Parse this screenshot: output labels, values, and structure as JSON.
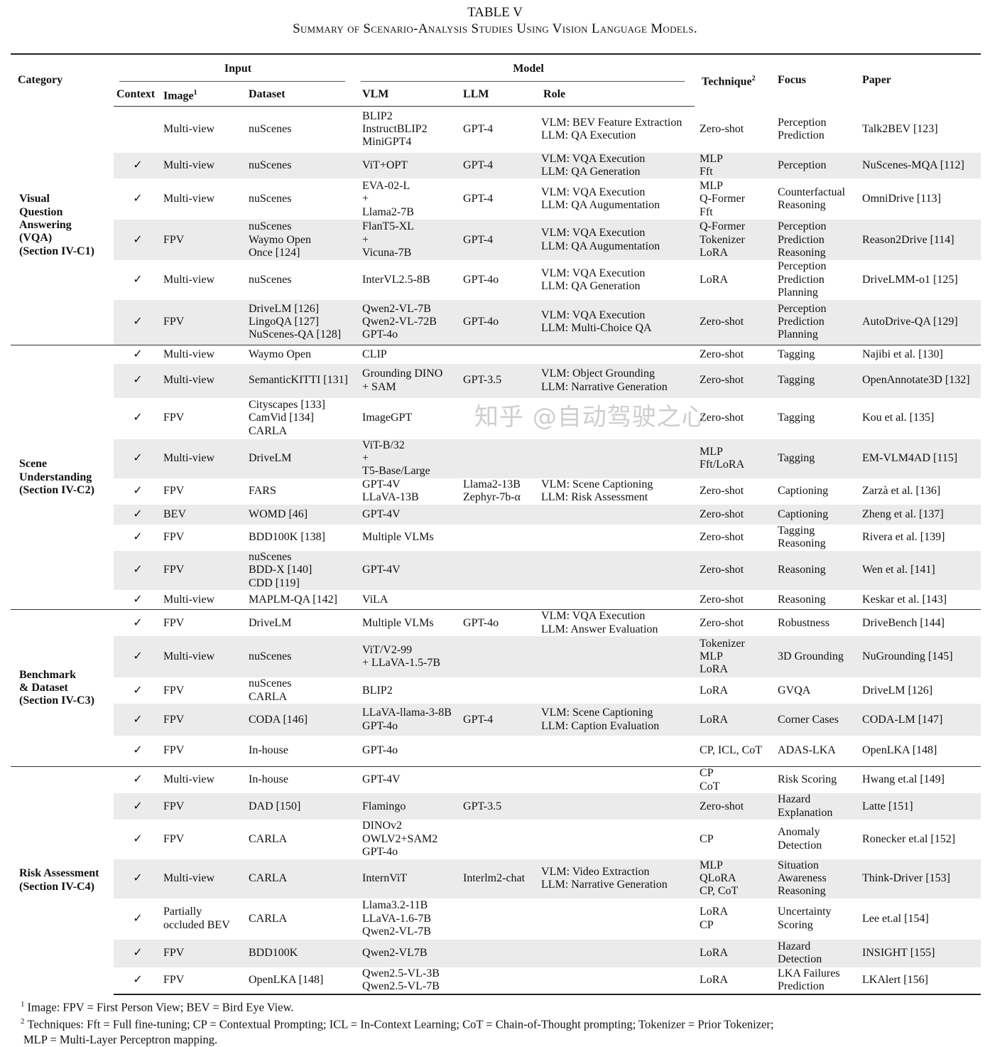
{
  "title": "TABLE V",
  "subtitle": "Summary of Scenario-Analysis Studies Using Vision Language Models.",
  "headers": {
    "category": "Category",
    "input": "Input",
    "model": "Model",
    "technique": "Technique",
    "technique_sup": "2",
    "focus": "Focus",
    "paper": "Paper",
    "context": "Context",
    "image": "Image",
    "image_sup": "1",
    "dataset": "Dataset",
    "vlm": "VLM",
    "llm": "LLM",
    "role": "Role"
  },
  "check_mark": "✓",
  "row_shading_color": "#ebebeb",
  "groups": [
    {
      "category": "Visual\nQuestion\nAnswering\n(VQA)\n(Section IV-C1)",
      "rows": [
        {
          "context": false,
          "image": "Multi-view",
          "dataset": "nuScenes",
          "vlm": "BLIP2\nInstructBLIP2\nMiniGPT4",
          "llm": "GPT-4",
          "role": "VLM: BEV Feature Extraction\nLLM: QA Execution",
          "technique": "Zero-shot",
          "focus": "Perception\nPrediction",
          "paper": "Talk2BEV [123]"
        },
        {
          "context": true,
          "image": "Multi-view",
          "dataset": "nuScenes",
          "vlm": "ViT+OPT",
          "llm": "GPT-4",
          "role": "VLM: VQA Execution\nLLM: QA Generation",
          "technique": "MLP\nFft",
          "focus": "Perception",
          "paper": "NuScenes-MQA [112]"
        },
        {
          "context": true,
          "image": "Multi-view",
          "dataset": "nuScenes",
          "vlm": "EVA-02-L\n+\nLlama2-7B",
          "llm": "GPT-4",
          "role": "VLM: VQA Execution\nLLM: QA Augumentation",
          "technique": "MLP\nQ-Former\nFft",
          "focus": "Counterfactual\nReasoning",
          "paper": "OmniDrive [113]"
        },
        {
          "context": true,
          "image": "FPV",
          "dataset": "nuScenes\nWaymo Open\nOnce [124]",
          "vlm": "FlanT5-XL\n+\nVicuna-7B",
          "llm": "GPT-4",
          "role": "VLM: VQA Execution\nLLM: QA Augumentation",
          "technique": "Q-Former\nTokenizer\nLoRA",
          "focus": "Perception\nPrediction\nReasoning",
          "paper": "Reason2Drive [114]"
        },
        {
          "context": true,
          "image": "Multi-view",
          "dataset": "nuScenes",
          "vlm": "InterVL2.5-8B",
          "llm": "GPT-4o",
          "role": "VLM: VQA Execution\nLLM: QA Generation",
          "technique": "LoRA",
          "focus": "Perception\nPrediction\nPlanning",
          "paper": "DriveLMM-o1 [125]"
        },
        {
          "context": true,
          "image": "FPV",
          "dataset": "DriveLM [126]\nLingoQA [127]\nNuScenes-QA [128]",
          "vlm": "Qwen2-VL-7B\nQwen2-VL-72B\nGPT-4o",
          "llm": "GPT-4o",
          "role": "VLM: VQA Execution\nLLM: Multi-Choice QA",
          "technique": "Zero-shot",
          "focus": "Perception\nPrediction\nPlanning",
          "paper": "AutoDrive-QA [129]"
        }
      ]
    },
    {
      "category": "Scene\nUnderstanding\n(Section IV-C2)",
      "rows": [
        {
          "context": true,
          "image": "Multi-view",
          "dataset": "Waymo Open",
          "vlm": "CLIP",
          "llm": "",
          "role": "",
          "technique": "Zero-shot",
          "focus": "Tagging",
          "paper": "Najibi et al. [130]"
        },
        {
          "context": true,
          "image": "Multi-view",
          "dataset": "SemanticKITTI [131]",
          "vlm": "Grounding DINO\n+ SAM",
          "llm": "GPT-3.5",
          "role": "VLM: Object Grounding\nLLM: Narrative Generation",
          "technique": "Zero-shot",
          "focus": "Tagging",
          "paper": "OpenAnnotate3D [132]"
        },
        {
          "context": true,
          "image": "FPV",
          "dataset": "Cityscapes [133]\nCamVid [134]\nCARLA",
          "vlm": "ImageGPT",
          "llm": "",
          "role": "",
          "technique": "Zero-shot",
          "focus": "Tagging",
          "paper": "Kou et al. [135]"
        },
        {
          "context": true,
          "image": "Multi-view",
          "dataset": "DriveLM",
          "vlm": "ViT-B/32\n+\nT5-Base/Large",
          "llm": "",
          "role": "",
          "technique": "MLP\nFft/LoRA",
          "focus": "Tagging",
          "paper": "EM-VLM4AD [115]"
        },
        {
          "context": true,
          "image": "FPV",
          "dataset": "FARS",
          "vlm": "GPT-4V\nLLaVA-13B",
          "llm": "Llama2-13B\nZephyr-7b-α",
          "role": "VLM: Scene Captioning\nLLM: Risk Assessment",
          "technique": "Zero-shot",
          "focus": "Captioning",
          "paper": "Zarzà et al. [136]"
        },
        {
          "context": true,
          "image": "BEV",
          "dataset": "WOMD [46]",
          "vlm": "GPT-4V",
          "llm": "",
          "role": "",
          "technique": "Zero-shot",
          "focus": "Captioning",
          "paper": "Zheng et al. [137]"
        },
        {
          "context": true,
          "image": "FPV",
          "dataset": "BDD100K [138]",
          "vlm": "Multiple VLMs",
          "llm": "",
          "role": "",
          "technique": "Zero-shot",
          "focus": "Tagging\nReasoning",
          "paper": "Rivera et al. [139]"
        },
        {
          "context": true,
          "image": "FPV",
          "dataset": "nuScenes\nBDD-X [140]\nCDD [119]",
          "vlm": "GPT-4V",
          "llm": "",
          "role": "",
          "technique": "Zero-shot",
          "focus": "Reasoning",
          "paper": "Wen et al. [141]"
        },
        {
          "context": true,
          "image": "Multi-view",
          "dataset": "MAPLM-QA [142]",
          "vlm": "ViLA",
          "llm": "",
          "role": "",
          "technique": "Zero-shot",
          "focus": "Reasoning",
          "paper": "Keskar et al. [143]"
        }
      ]
    },
    {
      "category": "Benchmark\n& Dataset\n(Section IV-C3)",
      "rows": [
        {
          "context": true,
          "image": "FPV",
          "dataset": "DriveLM",
          "vlm": "Multiple VLMs",
          "llm": "GPT-4o",
          "role": "VLM: VQA Execution\nLLM: Answer Evaluation",
          "technique": "Zero-shot",
          "focus": "Robustness",
          "paper": "DriveBench [144]"
        },
        {
          "context": true,
          "image": "Multi-view",
          "dataset": "nuScenes",
          "vlm": "ViT/V2-99\n+ LLaVA-1.5-7B",
          "llm": "",
          "role": "",
          "technique": "Tokenizer\nMLP\nLoRA",
          "focus": "3D Grounding",
          "paper": "NuGrounding [145]"
        },
        {
          "context": true,
          "image": "FPV",
          "dataset": "nuScenes\nCARLA",
          "vlm": "BLIP2",
          "llm": "",
          "role": "",
          "technique": "LoRA",
          "focus": "GVQA",
          "paper": "DriveLM [126]"
        },
        {
          "context": true,
          "image": "FPV",
          "dataset": "CODA [146]",
          "vlm": "LLaVA-llama-3-8B\nGPT-4o",
          "llm": "GPT-4",
          "role": "VLM: Scene Captioning\nLLM: Caption Evaluation",
          "technique": "LoRA",
          "focus": "Corner Cases",
          "paper": "CODA-LM [147]"
        },
        {
          "context": true,
          "image": "FPV",
          "dataset": "In-house",
          "vlm": "GPT-4o",
          "llm": "",
          "role": "",
          "technique": "CP, ICL, CoT",
          "focus": "ADAS-LKA",
          "paper": "OpenLKA [148]"
        }
      ]
    },
    {
      "category": "Risk Assessment\n(Section IV-C4)",
      "rows": [
        {
          "context": true,
          "image": "Multi-view",
          "dataset": "In-house",
          "vlm": "GPT-4V",
          "llm": "",
          "role": "",
          "technique": "CP\nCoT",
          "focus": "Risk Scoring",
          "paper": "Hwang et.al [149]"
        },
        {
          "context": true,
          "image": "FPV",
          "dataset": "DAD [150]",
          "vlm": "Flamingo",
          "llm": "GPT-3.5",
          "role": "",
          "technique": "Zero-shot",
          "focus": "Hazard\nExplanation",
          "paper": "Latte [151]"
        },
        {
          "context": true,
          "image": "FPV",
          "dataset": "CARLA",
          "vlm": "DINOv2\nOWLV2+SAM2\nGPT-4o",
          "llm": "",
          "role": "",
          "technique": "CP",
          "focus": "Anomaly\nDetection",
          "paper": "Ronecker et.al [152]"
        },
        {
          "context": true,
          "image": "Multi-view",
          "dataset": "CARLA",
          "vlm": "InternViT",
          "llm": "Interlm2-chat",
          "role": "VLM: Video Extraction\nLLM: Narrative Generation",
          "technique": "MLP\nQLoRA\nCP, CoT",
          "focus": "Situation\nAwareness\nReasoning",
          "paper": "Think-Driver [153]"
        },
        {
          "context": true,
          "image": "Partially\noccluded BEV",
          "dataset": "CARLA",
          "vlm": "Llama3.2-11B\nLLaVA-1.6-7B\nQwen2-VL-7B",
          "llm": "",
          "role": "",
          "technique": "LoRA\nCP",
          "focus": "Uncertainty\nScoring",
          "paper": "Lee et.al [154]"
        },
        {
          "context": true,
          "image": "FPV",
          "dataset": "BDD100K",
          "vlm": "Qwen2-VL7B",
          "llm": "",
          "role": "",
          "technique": "LoRA",
          "focus": "Hazard\nDetection",
          "paper": "INSIGHT [155]"
        },
        {
          "context": true,
          "image": "FPV",
          "dataset": "OpenLKA [148]",
          "vlm": "Qwen2.5-VL-3B\nQwen2.5-VL-7B",
          "llm": "",
          "role": "",
          "technique": "LoRA",
          "focus": "LKA Failures\nPrediction",
          "paper": "LKAlert [156]"
        }
      ]
    }
  ],
  "footnotes": [
    {
      "mark": "1",
      "text": "Image: FPV = First Person View; BEV = Bird Eye View."
    },
    {
      "mark": "2",
      "text": "Techniques: Fft = Full fine-tuning; CP = Contextual Prompting; ICL = In-Context Learning; CoT = Chain-of-Thought prompting; Tokenizer = Prior Tokenizer;\nMLP = Multi-Layer Perceptron mapping."
    }
  ],
  "watermark": "知乎 @自动驾驶之心"
}
